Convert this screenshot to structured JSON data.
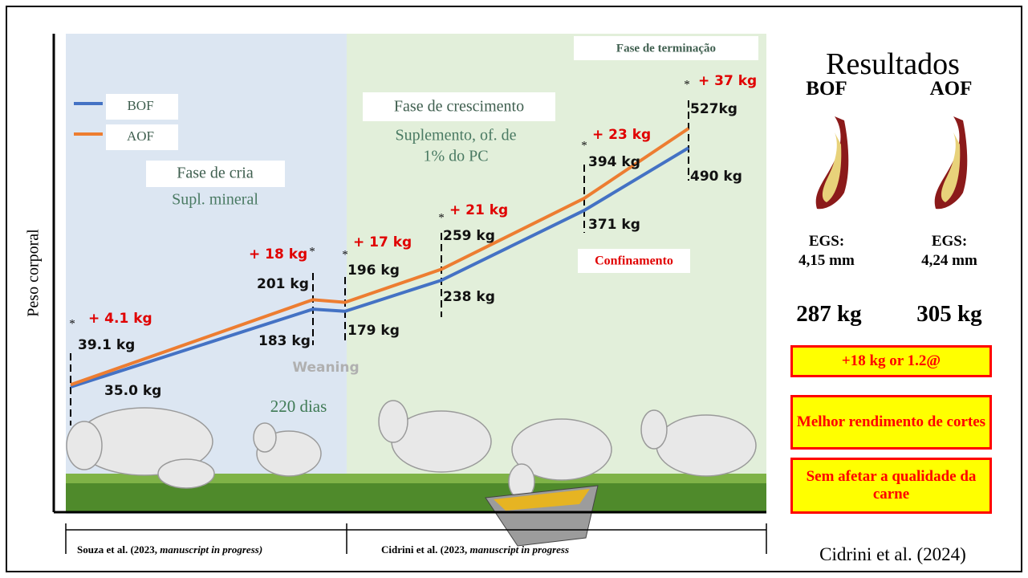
{
  "chart_data": {
    "type": "line",
    "y_label": "Peso corporal",
    "categories": [
      null,
      null,
      null,
      null,
      null,
      null
    ],
    "series": [
      {
        "name": "BOF",
        "color": "#4472c4",
        "values": [
          35.0,
          183,
          179,
          238,
          371,
          490
        ],
        "value_labels": [
          "35.0 kg",
          "183 kg",
          "179 kg",
          "238 kg",
          "371 kg",
          "490 kg"
        ]
      },
      {
        "name": "AOF",
        "color": "#ed7d31",
        "values": [
          39.1,
          201,
          196,
          259,
          394,
          527
        ],
        "value_labels": [
          "39.1 kg",
          "201 kg",
          "196 kg",
          "259 kg",
          "394 kg",
          "527kg"
        ]
      }
    ],
    "gains": [
      "+ 4.1 kg",
      "+ 18 kg",
      "+ 17 kg",
      "+ 21 kg",
      "+ 23 kg",
      "+ 37 kg"
    ],
    "gain_marker": "*"
  },
  "phases": {
    "cria": "Fase de cria",
    "cria_note": "Supl. mineral",
    "crescimento": "Fase de crescimento",
    "crescimento_note": [
      "Suplemento, of. de",
      "1% do PC"
    ],
    "terminacao": "Fase de terminação",
    "confinamento": "Confinamento",
    "weaning": "Weaning",
    "dias": "220 dias"
  },
  "references": [
    {
      "text": "Souza et al. (2023, ",
      "italic": "manuscript in progress)"
    },
    {
      "text": "Cidrini et al. (2023, ",
      "italic": "manuscript in progress"
    }
  ],
  "results": {
    "title": "Resultados",
    "groups": [
      {
        "name": "BOF",
        "egs_label": "EGS:",
        "egs": "4,15 mm",
        "weight": "287 kg"
      },
      {
        "name": "AOF",
        "egs_label": "EGS:",
        "egs": "4,24 mm",
        "weight": "305 kg"
      }
    ],
    "boxes": [
      "+18 kg or 1.2@",
      "Melhor rendimento de cortes",
      "Sem afetar a qualidade da carne"
    ],
    "citation": "Cidrini et al. (2024)"
  }
}
